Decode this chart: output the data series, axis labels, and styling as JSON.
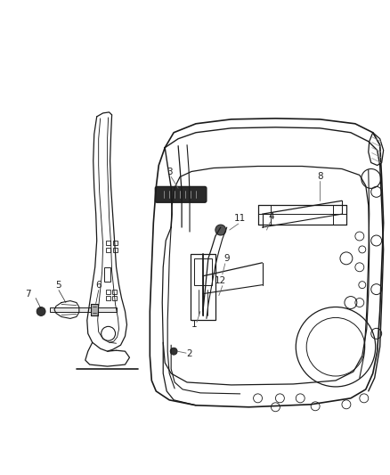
{
  "background_color": "#ffffff",
  "line_color": "#1a1a1a",
  "label_color": "#222222",
  "fig_width": 4.38,
  "fig_height": 5.33,
  "dpi": 100
}
